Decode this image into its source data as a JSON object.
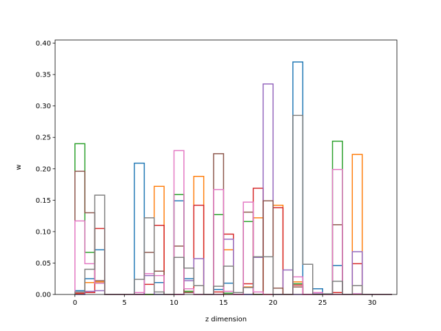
{
  "chart_data": {
    "type": "bar",
    "style": "step histogram (unfilled outlines), overlaid series",
    "xlabel": "z dimension",
    "ylabel": "w",
    "xlim": [
      -2.0,
      32.5
    ],
    "ylim": [
      0,
      0.405
    ],
    "xticks": [
      0,
      5,
      10,
      15,
      20,
      25,
      30
    ],
    "yticks": [
      0.0,
      0.05,
      0.1,
      0.15,
      0.2,
      0.25,
      0.3,
      0.35,
      0.4
    ],
    "ytick_labels": [
      "0.00",
      "0.05",
      "0.10",
      "0.15",
      "0.20",
      "0.25",
      "0.30",
      "0.35",
      "0.40"
    ],
    "bin_edges": [
      0,
      1,
      2,
      3,
      4,
      5,
      6,
      7,
      8,
      9,
      10,
      11,
      12,
      13,
      14,
      15,
      16,
      17,
      18,
      19,
      20,
      21,
      22,
      23,
      24,
      25,
      26,
      27,
      28,
      29,
      30,
      31,
      32
    ],
    "grid": false,
    "series": [
      {
        "color": "#1f77b4",
        "values": [
          0.006,
          0.025,
          0.071,
          0,
          0,
          0,
          0.209,
          0,
          0.019,
          0,
          0.149,
          0.025,
          0,
          0,
          0.008,
          0.018,
          0,
          0,
          0,
          0,
          0,
          0,
          0.37,
          0,
          0.009,
          0,
          0.046,
          0,
          0.001,
          0,
          0,
          0
        ]
      },
      {
        "color": "#ff7f0e",
        "values": [
          0.001,
          0.019,
          0.02,
          0,
          0,
          0,
          0,
          0,
          0.172,
          0,
          0,
          0.005,
          0.188,
          0,
          0,
          0.071,
          0,
          0.012,
          0.122,
          0,
          0.142,
          0,
          0.02,
          0,
          0,
          0,
          0,
          0,
          0.223,
          0,
          0,
          0
        ]
      },
      {
        "color": "#2ca02c",
        "values": [
          0.24,
          0.067,
          0.018,
          0,
          0,
          0,
          0,
          0,
          0,
          0,
          0.159,
          0.005,
          0,
          0,
          0.127,
          0.002,
          0,
          0.116,
          0,
          0,
          0,
          0,
          0.017,
          0,
          0,
          0,
          0.244,
          0,
          0,
          0,
          0,
          0
        ]
      },
      {
        "color": "#d62728",
        "values": [
          0.002,
          0.003,
          0.105,
          0,
          0,
          0,
          0,
          0.016,
          0.11,
          0,
          0,
          0.003,
          0.142,
          0,
          0.004,
          0.096,
          0,
          0.017,
          0.169,
          0,
          0.138,
          0,
          0.015,
          0,
          0,
          0,
          0.003,
          0,
          0.049,
          0,
          0,
          0
        ]
      },
      {
        "color": "#9467bd",
        "values": [
          0,
          0.005,
          0.006,
          0,
          0,
          0,
          0,
          0.03,
          0,
          0,
          0,
          0.022,
          0.057,
          0,
          0,
          0.088,
          0,
          0,
          0.059,
          0.335,
          0,
          0.039,
          0,
          0,
          0.001,
          0,
          0,
          0,
          0.068,
          0,
          0,
          0
        ]
      },
      {
        "color": "#8c564b",
        "values": [
          0.196,
          0.13,
          0.022,
          0,
          0,
          0,
          0.003,
          0.067,
          0.037,
          0,
          0.077,
          0.003,
          0,
          0,
          0.224,
          0,
          0,
          0.131,
          0,
          0.149,
          0.01,
          0,
          0.012,
          0,
          0,
          0,
          0.111,
          0,
          0,
          0,
          0,
          0
        ]
      },
      {
        "color": "#e377c2",
        "values": [
          0.117,
          0.049,
          0.018,
          0,
          0,
          0,
          0.003,
          0.033,
          0.03,
          0,
          0.229,
          0.009,
          0,
          0,
          0.167,
          0.005,
          0,
          0.147,
          0.004,
          0,
          0,
          0,
          0.028,
          0,
          0.003,
          0,
          0.199,
          0,
          0.001,
          0,
          0,
          0
        ]
      },
      {
        "color": "#7f7f7f",
        "values": [
          0.004,
          0.04,
          0.158,
          0,
          0,
          0,
          0.024,
          0.122,
          0.004,
          0,
          0.059,
          0.042,
          0.014,
          0,
          0.013,
          0.045,
          0.003,
          0.011,
          0.06,
          0.06,
          0,
          0,
          0.285,
          0.048,
          0,
          0.001,
          0.021,
          0,
          0.014,
          0,
          0,
          0
        ]
      }
    ]
  }
}
